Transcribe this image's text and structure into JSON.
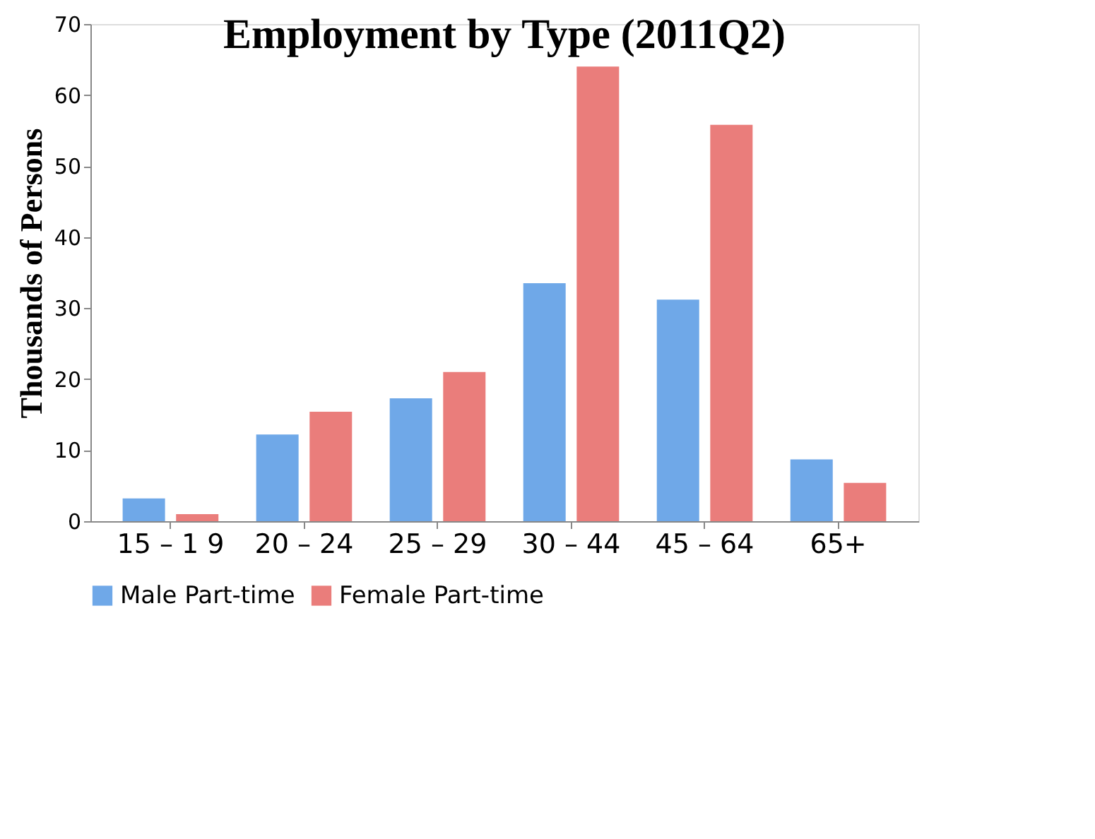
{
  "chart_data": {
    "type": "bar",
    "title": "Employment by Type (2011Q2)",
    "ylabel": "Thousands of Persons",
    "categories": [
      "15 – 1 9",
      "20 – 24",
      "25 – 29",
      "30 – 44",
      "45 – 64",
      "65+"
    ],
    "series": [
      {
        "name": "Male Part-time",
        "color": "#6fa8e8",
        "values": [
          3.2,
          12.2,
          17.3,
          33.5,
          31.2,
          8.7
        ]
      },
      {
        "name": "Female Part-time",
        "color": "#ea7d7b",
        "values": [
          1.0,
          15.4,
          21.0,
          64.0,
          55.8,
          5.4
        ]
      }
    ],
    "ylim": [
      0,
      70
    ],
    "yticks": [
      0,
      10,
      20,
      30,
      40,
      50,
      60,
      70
    ],
    "grid": false,
    "legend": "bottom"
  }
}
